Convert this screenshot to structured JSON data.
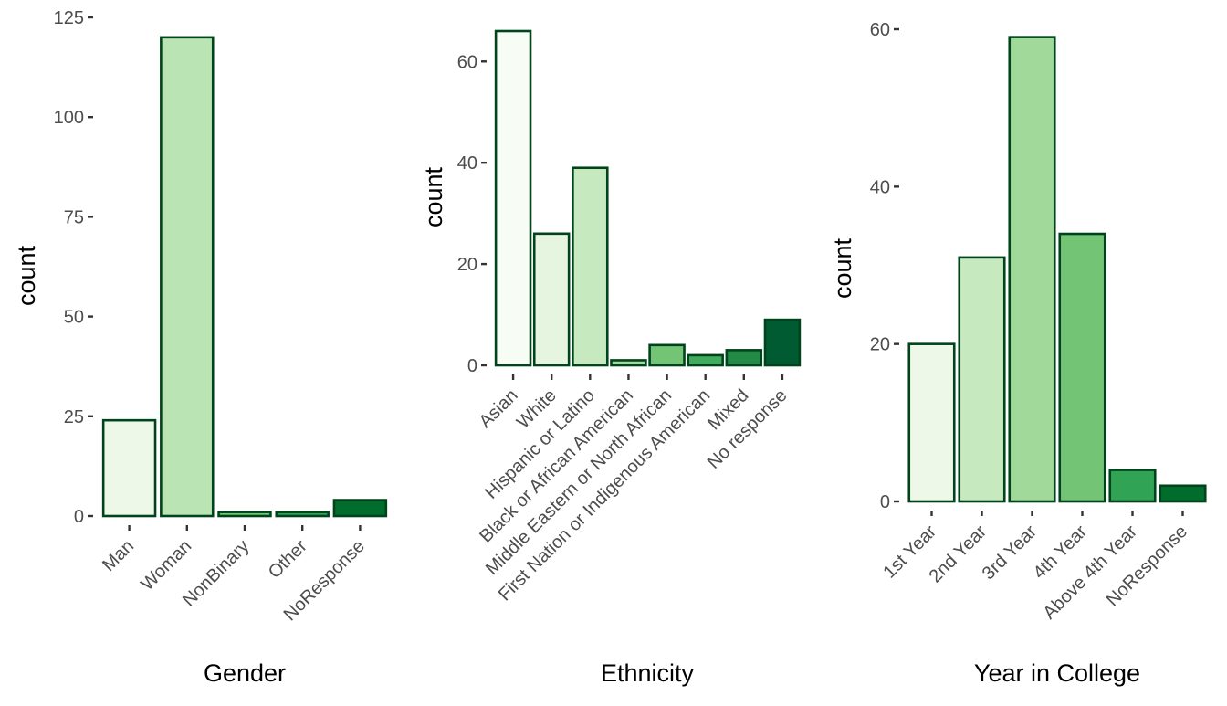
{
  "chart_data": [
    {
      "type": "bar",
      "title": "",
      "xlabel": "Gender",
      "ylabel": "count",
      "categories": [
        "Man",
        "Woman",
        "NonBinary",
        "Other",
        "NoResponse"
      ],
      "values": [
        24,
        120,
        1,
        1,
        4
      ],
      "ylim": [
        0,
        125
      ],
      "yticks": [
        0,
        25,
        50,
        75,
        100,
        125
      ],
      "colors": [
        "#edf8e9",
        "#bae4b3",
        "#74c476",
        "#31a354",
        "#006d2c"
      ],
      "outline_color": "#00441b",
      "grid": false,
      "legend": "none"
    },
    {
      "type": "bar",
      "title": "",
      "xlabel": "Ethnicity",
      "ylabel": "count",
      "categories": [
        "Asian",
        "White",
        "Hispanic or Latino",
        "Black or African American",
        "Middle Eastern or North African",
        "First Nation or Indigenous American",
        "Mixed",
        "No response"
      ],
      "values": [
        66,
        26,
        39,
        1,
        4,
        2,
        3,
        9
      ],
      "ylim": [
        0,
        66
      ],
      "yticks": [
        0,
        20,
        40,
        60
      ],
      "colors": [
        "#f7fcf5",
        "#e5f5e0",
        "#c7e9c0",
        "#a1d99b",
        "#74c476",
        "#41ab5d",
        "#238b45",
        "#005a32"
      ],
      "outline_color": "#00441b",
      "grid": false,
      "legend": "none"
    },
    {
      "type": "bar",
      "title": "",
      "xlabel": "Year in College",
      "ylabel": "count",
      "categories": [
        "1st Year",
        "2nd Year",
        "3rd Year",
        "4th Year",
        "Above 4th Year",
        "NoResponse"
      ],
      "values": [
        20,
        31,
        59,
        34,
        4,
        2
      ],
      "ylim": [
        0,
        60
      ],
      "yticks": [
        0,
        20,
        40,
        60
      ],
      "colors": [
        "#edf8e9",
        "#c7e9c0",
        "#a1d99b",
        "#74c476",
        "#31a354",
        "#006d2c"
      ],
      "outline_color": "#00441b",
      "grid": false,
      "legend": "none"
    }
  ]
}
